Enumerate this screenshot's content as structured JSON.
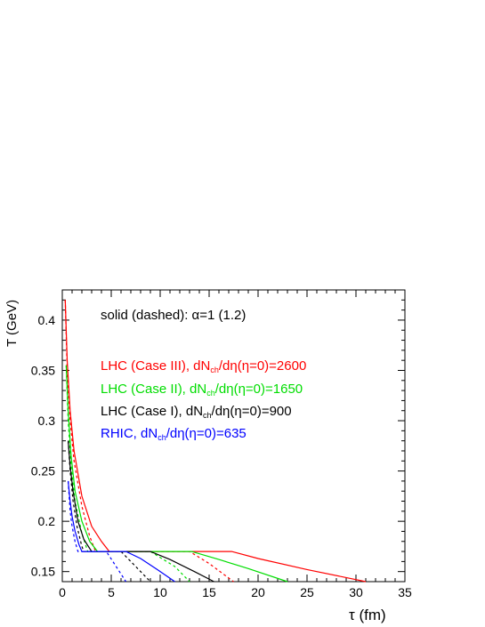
{
  "chart_data": {
    "type": "line",
    "xlabel": "τ (fm)",
    "ylabel": "T (GeV)",
    "xlim": [
      0,
      35
    ],
    "ylim": [
      0.14,
      0.43
    ],
    "x_ticks": [
      0,
      5,
      10,
      15,
      20,
      25,
      30,
      35
    ],
    "y_ticks": [
      0.15,
      0.2,
      0.25,
      0.3,
      0.35,
      0.4
    ],
    "grid": false,
    "annotation": "solid (dashed): α=1 (1.2)",
    "legend_placement": "top-center",
    "series": [
      {
        "name": "LHC (Case III), dN_ch/dη(η=0)=2600",
        "color": "#ff0000",
        "dash": false,
        "x": [
          0.3,
          0.5,
          0.8,
          1.2,
          2,
          3,
          4,
          4.8,
          17.3,
          20,
          25,
          31
        ],
        "y": [
          0.42,
          0.36,
          0.31,
          0.27,
          0.225,
          0.195,
          0.18,
          0.17,
          0.17,
          0.163,
          0.152,
          0.14
        ]
      },
      {
        "name": "LHC (Case III), dN_ch/dη(η=0)=2600",
        "color": "#ff0000",
        "dash": true,
        "x": [
          0.3,
          0.5,
          0.8,
          1.2,
          2,
          2.8,
          3.4,
          13,
          15,
          17.5
        ],
        "y": [
          0.42,
          0.35,
          0.3,
          0.26,
          0.215,
          0.185,
          0.17,
          0.17,
          0.158,
          0.14
        ]
      },
      {
        "name": "LHC (Case II), dN_ch/dη(η=0)=1650",
        "color": "#00dd00",
        "dash": false,
        "x": [
          0.4,
          0.6,
          0.9,
          1.3,
          2,
          2.8,
          3.6,
          13.2,
          16,
          19,
          23
        ],
        "y": [
          0.355,
          0.31,
          0.265,
          0.23,
          0.2,
          0.18,
          0.17,
          0.17,
          0.162,
          0.153,
          0.14
        ]
      },
      {
        "name": "LHC (Case II), dN_ch/dη(η=0)=1650",
        "color": "#00dd00",
        "dash": true,
        "x": [
          0.4,
          0.6,
          0.9,
          1.3,
          2,
          2.6,
          9,
          11.5,
          13
        ],
        "y": [
          0.355,
          0.3,
          0.255,
          0.22,
          0.188,
          0.17,
          0.17,
          0.155,
          0.14
        ]
      },
      {
        "name": "LHC (Case I), dN_ch/dη(η=0)=900",
        "color": "#000000",
        "dash": false,
        "x": [
          0.6,
          0.8,
          1.1,
          1.6,
          2.2,
          3,
          9,
          11,
          13.5,
          15.5
        ],
        "y": [
          0.28,
          0.255,
          0.23,
          0.2,
          0.182,
          0.17,
          0.17,
          0.162,
          0.15,
          0.14
        ]
      },
      {
        "name": "LHC (Case I), dN_ch/dη(η=0)=900",
        "color": "#000000",
        "dash": true,
        "x": [
          0.6,
          0.8,
          1.1,
          1.5,
          2,
          2.2,
          6,
          7.5,
          9
        ],
        "y": [
          0.28,
          0.25,
          0.22,
          0.195,
          0.175,
          0.17,
          0.17,
          0.155,
          0.14
        ]
      },
      {
        "name": "RHIC, dN_ch/dη(η=0)=635",
        "color": "#0000ff",
        "dash": false,
        "x": [
          0.6,
          0.8,
          1.0,
          1.3,
          1.7,
          2.0,
          6.5,
          8,
          9.7,
          11.5
        ],
        "y": [
          0.24,
          0.22,
          0.205,
          0.19,
          0.177,
          0.17,
          0.17,
          0.163,
          0.152,
          0.14
        ]
      },
      {
        "name": "RHIC, dN_ch/dη(η=0)=635",
        "color": "#0000ff",
        "dash": true,
        "x": [
          0.6,
          0.8,
          1.0,
          1.3,
          1.6,
          4.5,
          5.5,
          6.5
        ],
        "y": [
          0.24,
          0.21,
          0.195,
          0.18,
          0.17,
          0.17,
          0.155,
          0.14
        ]
      }
    ],
    "legend": [
      {
        "text": "LHC (Case III), dN",
        "sub": "ch",
        "rest": "/dη(η=0)=2600",
        "color": "#ff0000"
      },
      {
        "text": "LHC (Case II), dN",
        "sub": "ch",
        "rest": "/dη(η=0)=1650",
        "color": "#00dd00"
      },
      {
        "text": "LHC (Case I), dN",
        "sub": "ch",
        "rest": "/dη(η=0)=900",
        "color": "#000000"
      },
      {
        "text": "RHIC, dN",
        "sub": "ch",
        "rest": "/dη(η=0)=635",
        "color": "#0000ff"
      }
    ]
  }
}
